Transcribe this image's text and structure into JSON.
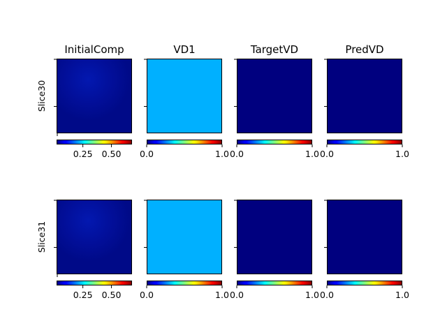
{
  "chart_data": {
    "type": "heatmap",
    "layout": {
      "rows": 2,
      "cols": 4
    },
    "row_labels": [
      "Slice30",
      "Slice31"
    ],
    "col_titles": [
      "InitialComp",
      "VD1",
      "TargetVD",
      "PredVD"
    ],
    "colormap": "jet",
    "panels": [
      {
        "row": 0,
        "col": 0,
        "fill": "blob",
        "base_color": "#000a88",
        "blob_color": "#0318b0",
        "colorbar": {
          "range": [
            0.02,
            0.68
          ],
          "ticks": [
            0.25,
            0.5
          ],
          "tick_labels": [
            "0.25",
            "0.50"
          ]
        }
      },
      {
        "row": 0,
        "col": 1,
        "fill": "uniform",
        "base_color": "#00b0ff",
        "colorbar": {
          "range": [
            0,
            1
          ],
          "ticks": [
            0,
            1
          ],
          "tick_labels": [
            "0.0",
            "1.0"
          ]
        }
      },
      {
        "row": 0,
        "col": 2,
        "fill": "uniform",
        "base_color": "#00007f",
        "colorbar": {
          "range": [
            0,
            1
          ],
          "ticks": [
            0,
            1
          ],
          "tick_labels": [
            "0.0",
            "1.0"
          ]
        }
      },
      {
        "row": 0,
        "col": 3,
        "fill": "uniform",
        "base_color": "#00007f",
        "colorbar": {
          "range": [
            0,
            1
          ],
          "ticks": [
            0,
            1
          ],
          "tick_labels": [
            "0.0",
            "1.0"
          ]
        }
      },
      {
        "row": 1,
        "col": 0,
        "fill": "blob",
        "base_color": "#000a88",
        "blob_color": "#0318b0",
        "colorbar": {
          "range": [
            0.02,
            0.68
          ],
          "ticks": [
            0.25,
            0.5
          ],
          "tick_labels": [
            "0.25",
            "0.50"
          ]
        }
      },
      {
        "row": 1,
        "col": 1,
        "fill": "uniform",
        "base_color": "#00b0ff",
        "colorbar": {
          "range": [
            0,
            1
          ],
          "ticks": [
            0,
            1
          ],
          "tick_labels": [
            "0.0",
            "1.0"
          ]
        }
      },
      {
        "row": 1,
        "col": 2,
        "fill": "uniform",
        "base_color": "#00007f",
        "colorbar": {
          "range": [
            0,
            1
          ],
          "ticks": [
            0,
            1
          ],
          "tick_labels": [
            "0.0",
            "1.0"
          ]
        }
      },
      {
        "row": 1,
        "col": 3,
        "fill": "uniform",
        "base_color": "#00007f",
        "colorbar": {
          "range": [
            0,
            1
          ],
          "ticks": [
            0,
            1
          ],
          "tick_labels": [
            "0.0",
            "1.0"
          ]
        }
      }
    ],
    "grid": false,
    "legend": "none"
  }
}
